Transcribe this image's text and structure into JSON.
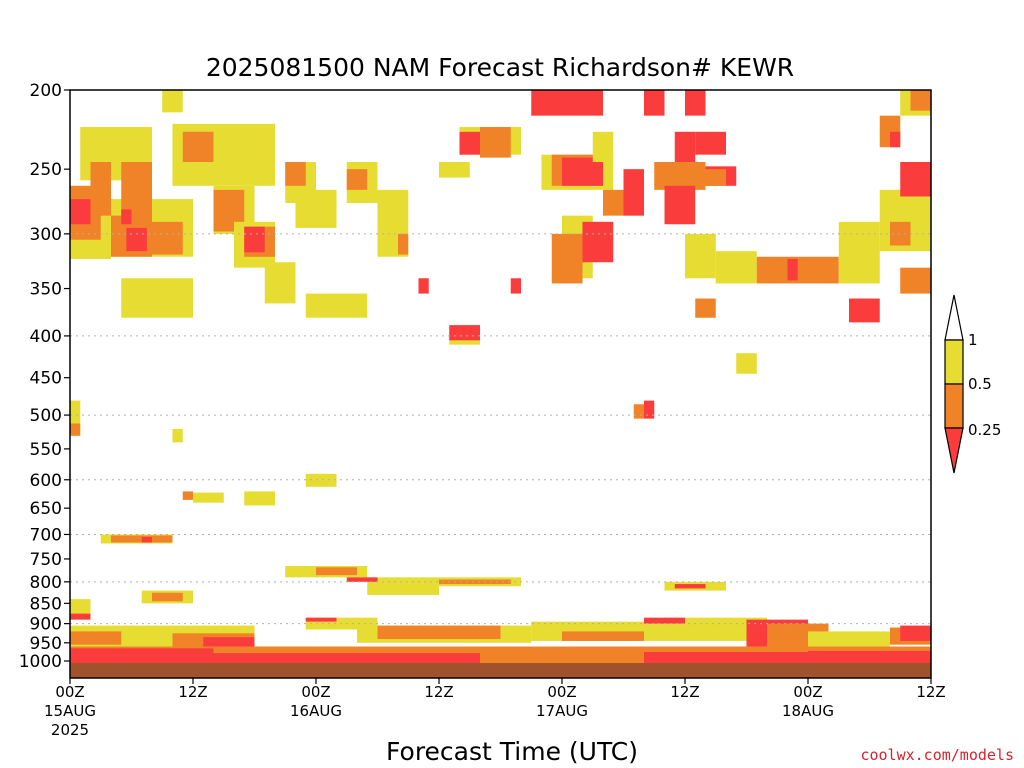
{
  "chart_data": {
    "type": "heatmap",
    "title": "2025081500 NAM Forecast Richardson# KEWR",
    "xlabel": "Forecast Time (UTC)",
    "ylabel": "",
    "credit": "coolwx.com/models",
    "y_axis": {
      "unit": "hPa",
      "range": [
        1025,
        200
      ],
      "ticks": [
        200,
        250,
        300,
        350,
        400,
        450,
        500,
        550,
        600,
        650,
        700,
        750,
        800,
        850,
        900,
        950,
        1000
      ],
      "tick_labels": [
        "200",
        "250",
        "300",
        "350",
        "400",
        "450",
        "500",
        "550",
        "600",
        "650",
        "700",
        "750",
        "800",
        "850",
        "900",
        "950",
        "1000"
      ],
      "dotted_grid_at": [
        300,
        400,
        500,
        600,
        700,
        800,
        900
      ]
    },
    "x_axis": {
      "unit": "forecast hour from 2025-08-15 00Z",
      "range": [
        0,
        84
      ],
      "ticks": [
        {
          "hour": 0,
          "lines": [
            "00Z",
            "15AUG",
            "2025"
          ]
        },
        {
          "hour": 12,
          "lines": [
            "12Z"
          ]
        },
        {
          "hour": 24,
          "lines": [
            "00Z",
            "16AUG"
          ]
        },
        {
          "hour": 36,
          "lines": [
            "12Z"
          ]
        },
        {
          "hour": 48,
          "lines": [
            "00Z",
            "17AUG"
          ]
        },
        {
          "hour": 60,
          "lines": [
            "12Z"
          ]
        },
        {
          "hour": 72,
          "lines": [
            "00Z",
            "18AUG"
          ]
        },
        {
          "hour": 84,
          "lines": [
            "12Z"
          ]
        }
      ]
    },
    "colorbar": {
      "labels": [
        "1",
        "0.5",
        "0.25"
      ],
      "colors": {
        "above_1": "#ffffff",
        "0.5_to_1": "#e6dc32",
        "0.25_to_0.5": "#f08228",
        "below_0.25": "#fa3c3c"
      },
      "placement": "right"
    },
    "ground_color": "#a0522d",
    "regions": [
      {
        "cls": "y",
        "x": [
          0,
          4
        ],
        "p": [
          265,
          322
        ]
      },
      {
        "cls": "o",
        "x": [
          0,
          3
        ],
        "p": [
          262,
          305
        ]
      },
      {
        "cls": "r",
        "x": [
          0,
          2
        ],
        "p": [
          272,
          292
        ]
      },
      {
        "cls": "y",
        "x": [
          1,
          8
        ],
        "p": [
          222,
          258
        ]
      },
      {
        "cls": "o",
        "x": [
          2,
          4
        ],
        "p": [
          245,
          285
        ]
      },
      {
        "cls": "y",
        "x": [
          4,
          12
        ],
        "p": [
          272,
          320
        ]
      },
      {
        "cls": "o",
        "x": [
          4,
          8
        ],
        "p": [
          285,
          320
        ]
      },
      {
        "cls": "o",
        "x": [
          5,
          8
        ],
        "p": [
          245,
          295
        ]
      },
      {
        "cls": "r",
        "x": [
          5,
          6
        ],
        "p": [
          280,
          292
        ]
      },
      {
        "cls": "r",
        "x": [
          5.5,
          7.5
        ],
        "p": [
          295,
          315
        ]
      },
      {
        "cls": "o",
        "x": [
          8,
          11
        ],
        "p": [
          290,
          318
        ]
      },
      {
        "cls": "y",
        "x": [
          5,
          12
        ],
        "p": [
          340,
          380
        ]
      },
      {
        "cls": "y",
        "x": [
          9,
          11
        ],
        "p": [
          200,
          213
        ]
      },
      {
        "cls": "y",
        "x": [
          10,
          20
        ],
        "p": [
          220,
          262
        ]
      },
      {
        "cls": "o",
        "x": [
          11,
          14
        ],
        "p": [
          225,
          245
        ]
      },
      {
        "cls": "y",
        "x": [
          14,
          18
        ],
        "p": [
          262,
          300
        ]
      },
      {
        "cls": "o",
        "x": [
          14,
          17
        ],
        "p": [
          265,
          298
        ]
      },
      {
        "cls": "y",
        "x": [
          16,
          20
        ],
        "p": [
          290,
          330
        ]
      },
      {
        "cls": "o",
        "x": [
          17,
          20
        ],
        "p": [
          294,
          320
        ]
      },
      {
        "cls": "r",
        "x": [
          17,
          19
        ],
        "p": [
          294,
          316
        ]
      },
      {
        "cls": "y",
        "x": [
          19,
          22
        ],
        "p": [
          325,
          365
        ]
      },
      {
        "cls": "y",
        "x": [
          21,
          24
        ],
        "p": [
          245,
          275
        ]
      },
      {
        "cls": "o",
        "x": [
          21,
          23
        ],
        "p": [
          245,
          262
        ]
      },
      {
        "cls": "y",
        "x": [
          22,
          26
        ],
        "p": [
          265,
          295
        ]
      },
      {
        "cls": "y",
        "x": [
          23,
          29
        ],
        "p": [
          355,
          380
        ]
      },
      {
        "cls": "y",
        "x": [
          27,
          30
        ],
        "p": [
          245,
          275
        ]
      },
      {
        "cls": "o",
        "x": [
          27,
          29
        ],
        "p": [
          250,
          265
        ]
      },
      {
        "cls": "y",
        "x": [
          30,
          33
        ],
        "p": [
          265,
          320
        ]
      },
      {
        "cls": "o",
        "x": [
          32,
          33
        ],
        "p": [
          300,
          318
        ]
      },
      {
        "cls": "r",
        "x": [
          34,
          35
        ],
        "p": [
          340,
          355
        ]
      },
      {
        "cls": "y",
        "x": [
          36,
          39
        ],
        "p": [
          245,
          256
        ]
      },
      {
        "cls": "y",
        "x": [
          38,
          44
        ],
        "p": [
          222,
          240
        ]
      },
      {
        "cls": "r",
        "x": [
          38,
          40
        ],
        "p": [
          225,
          240
        ]
      },
      {
        "cls": "o",
        "x": [
          40,
          43
        ],
        "p": [
          222,
          242
        ]
      },
      {
        "cls": "y",
        "x": [
          37,
          40
        ],
        "p": [
          390,
          410
        ]
      },
      {
        "cls": "r",
        "x": [
          37,
          40
        ],
        "p": [
          388,
          405
        ]
      },
      {
        "cls": "r",
        "x": [
          43,
          44
        ],
        "p": [
          340,
          355
        ]
      },
      {
        "cls": "r",
        "x": [
          45,
          52
        ],
        "p": [
          200,
          215
        ]
      },
      {
        "cls": "y",
        "x": [
          46,
          53
        ],
        "p": [
          240,
          265
        ]
      },
      {
        "cls": "o",
        "x": [
          47,
          52
        ],
        "p": [
          240,
          262
        ]
      },
      {
        "cls": "r",
        "x": [
          48,
          52
        ],
        "p": [
          242,
          262
        ]
      },
      {
        "cls": "y",
        "x": [
          48,
          51
        ],
        "p": [
          285,
          340
        ]
      },
      {
        "cls": "o",
        "x": [
          47,
          50
        ],
        "p": [
          300,
          345
        ]
      },
      {
        "cls": "r",
        "x": [
          50,
          53
        ],
        "p": [
          290,
          325
        ]
      },
      {
        "cls": "y",
        "x": [
          51,
          53
        ],
        "p": [
          225,
          245
        ]
      },
      {
        "cls": "o",
        "x": [
          52,
          54
        ],
        "p": [
          265,
          285
        ]
      },
      {
        "cls": "r",
        "x": [
          54,
          56
        ],
        "p": [
          250,
          285
        ]
      },
      {
        "cls": "o",
        "x": [
          57,
          62
        ],
        "p": [
          245,
          265
        ]
      },
      {
        "cls": "r",
        "x": [
          58,
          61
        ],
        "p": [
          262,
          292
        ]
      },
      {
        "cls": "r",
        "x": [
          59,
          61
        ],
        "p": [
          225,
          245
        ]
      },
      {
        "cls": "r",
        "x": [
          61,
          64
        ],
        "p": [
          225,
          240
        ]
      },
      {
        "cls": "r",
        "x": [
          62,
          65
        ],
        "p": [
          248,
          262
        ]
      },
      {
        "cls": "o",
        "x": [
          61,
          64
        ],
        "p": [
          250,
          262
        ]
      },
      {
        "cls": "r",
        "x": [
          56,
          58
        ],
        "p": [
          200,
          215
        ]
      },
      {
        "cls": "r",
        "x": [
          60,
          62
        ],
        "p": [
          200,
          215
        ]
      },
      {
        "cls": "y",
        "x": [
          60,
          63
        ],
        "p": [
          300,
          340
        ]
      },
      {
        "cls": "o",
        "x": [
          61,
          63
        ],
        "p": [
          360,
          380
        ]
      },
      {
        "cls": "y",
        "x": [
          63,
          67
        ],
        "p": [
          315,
          345
        ]
      },
      {
        "cls": "o",
        "x": [
          67,
          72
        ],
        "p": [
          320,
          345
        ]
      },
      {
        "cls": "r",
        "x": [
          70,
          71
        ],
        "p": [
          322,
          342
        ]
      },
      {
        "cls": "o",
        "x": [
          72,
          75
        ],
        "p": [
          320,
          345
        ]
      },
      {
        "cls": "y",
        "x": [
          75,
          79
        ],
        "p": [
          290,
          345
        ]
      },
      {
        "cls": "y",
        "x": [
          79,
          84
        ],
        "p": [
          265,
          315
        ]
      },
      {
        "cls": "o",
        "x": [
          80,
          82
        ],
        "p": [
          290,
          310
        ]
      },
      {
        "cls": "r",
        "x": [
          81,
          84
        ],
        "p": [
          245,
          270
        ]
      },
      {
        "cls": "o",
        "x": [
          79,
          81
        ],
        "p": [
          215,
          235
        ]
      },
      {
        "cls": "r",
        "x": [
          80,
          81
        ],
        "p": [
          225,
          235
        ]
      },
      {
        "cls": "r",
        "x": [
          76,
          79
        ],
        "p": [
          360,
          385
        ]
      },
      {
        "cls": "o",
        "x": [
          81,
          84
        ],
        "p": [
          330,
          355
        ]
      },
      {
        "cls": "y",
        "x": [
          81,
          84
        ],
        "p": [
          200,
          215
        ]
      },
      {
        "cls": "o",
        "x": [
          82,
          84
        ],
        "p": [
          200,
          212
        ]
      },
      {
        "cls": "y",
        "x": [
          65,
          67
        ],
        "p": [
          420,
          445
        ]
      },
      {
        "cls": "o",
        "x": [
          55,
          56
        ],
        "p": [
          485,
          505
        ]
      },
      {
        "cls": "r",
        "x": [
          56,
          57
        ],
        "p": [
          480,
          505
        ]
      },
      {
        "cls": "y",
        "x": [
          0,
          1
        ],
        "p": [
          480,
          530
        ]
      },
      {
        "cls": "o",
        "x": [
          0,
          1
        ],
        "p": [
          512,
          530
        ]
      },
      {
        "cls": "y",
        "x": [
          10,
          11
        ],
        "p": [
          520,
          540
        ]
      },
      {
        "cls": "y",
        "x": [
          23,
          26
        ],
        "p": [
          590,
          612
        ]
      },
      {
        "cls": "y",
        "x": [
          17,
          20
        ],
        "p": [
          620,
          645
        ]
      },
      {
        "cls": "o",
        "x": [
          11,
          12
        ],
        "p": [
          620,
          635
        ]
      },
      {
        "cls": "y",
        "x": [
          12,
          15
        ],
        "p": [
          622,
          640
        ]
      },
      {
        "cls": "y",
        "x": [
          3,
          10
        ],
        "p": [
          700,
          718
        ]
      },
      {
        "cls": "o",
        "x": [
          4,
          10
        ],
        "p": [
          702,
          716
        ]
      },
      {
        "cls": "r",
        "x": [
          7,
          8
        ],
        "p": [
          705,
          716
        ]
      },
      {
        "cls": "y",
        "x": [
          21,
          29
        ],
        "p": [
          765,
          790
        ]
      },
      {
        "cls": "o",
        "x": [
          24,
          28
        ],
        "p": [
          768,
          785
        ]
      },
      {
        "cls": "y",
        "x": [
          29,
          36
        ],
        "p": [
          790,
          830
        ]
      },
      {
        "cls": "r",
        "x": [
          27,
          30
        ],
        "p": [
          790,
          800
        ]
      },
      {
        "cls": "y",
        "x": [
          36,
          44
        ],
        "p": [
          790,
          810
        ]
      },
      {
        "cls": "o",
        "x": [
          36,
          43
        ],
        "p": [
          795,
          805
        ]
      },
      {
        "cls": "y",
        "x": [
          58,
          64
        ],
        "p": [
          800,
          820
        ]
      },
      {
        "cls": "r",
        "x": [
          59,
          62
        ],
        "p": [
          805,
          815
        ]
      },
      {
        "cls": "y",
        "x": [
          7,
          12
        ],
        "p": [
          820,
          850
        ]
      },
      {
        "cls": "o",
        "x": [
          8,
          11
        ],
        "p": [
          825,
          845
        ]
      },
      {
        "cls": "y",
        "x": [
          0,
          2
        ],
        "p": [
          840,
          880
        ]
      },
      {
        "cls": "r",
        "x": [
          0,
          2
        ],
        "p": [
          875,
          890
        ]
      },
      {
        "cls": "y",
        "x": [
          0,
          8
        ],
        "p": [
          905,
          960
        ]
      },
      {
        "cls": "o",
        "x": [
          0,
          5
        ],
        "p": [
          920,
          955
        ]
      },
      {
        "cls": "y",
        "x": [
          8,
          18
        ],
        "p": [
          905,
          960
        ]
      },
      {
        "cls": "o",
        "x": [
          10,
          18
        ],
        "p": [
          925,
          960
        ]
      },
      {
        "cls": "r",
        "x": [
          13,
          18
        ],
        "p": [
          935,
          960
        ]
      },
      {
        "cls": "y",
        "x": [
          23,
          30
        ],
        "p": [
          885,
          915
        ]
      },
      {
        "cls": "r",
        "x": [
          23,
          26
        ],
        "p": [
          885,
          895
        ]
      },
      {
        "cls": "y",
        "x": [
          28,
          45
        ],
        "p": [
          905,
          950
        ]
      },
      {
        "cls": "o",
        "x": [
          30,
          42
        ],
        "p": [
          905,
          940
        ]
      },
      {
        "cls": "y",
        "x": [
          45,
          58
        ],
        "p": [
          895,
          945
        ]
      },
      {
        "cls": "o",
        "x": [
          48,
          56
        ],
        "p": [
          920,
          945
        ]
      },
      {
        "cls": "y",
        "x": [
          58,
          68
        ],
        "p": [
          885,
          945
        ]
      },
      {
        "cls": "r",
        "x": [
          56,
          60
        ],
        "p": [
          885,
          900
        ]
      },
      {
        "cls": "r",
        "x": [
          66,
          72
        ],
        "p": [
          890,
          960
        ]
      },
      {
        "cls": "o",
        "x": [
          68,
          74
        ],
        "p": [
          900,
          960
        ]
      },
      {
        "cls": "y",
        "x": [
          72,
          80
        ],
        "p": [
          920,
          960
        ]
      },
      {
        "cls": "o",
        "x": [
          80,
          84
        ],
        "p": [
          910,
          955
        ]
      },
      {
        "cls": "r",
        "x": [
          81,
          84
        ],
        "p": [
          905,
          945
        ]
      },
      {
        "cls": "o",
        "x": [
          0,
          84
        ],
        "p": [
          960,
          1002
        ]
      },
      {
        "cls": "r",
        "x": [
          0,
          14
        ],
        "p": [
          965,
          1008
        ]
      },
      {
        "cls": "r",
        "x": [
          14,
          40
        ],
        "p": [
          978,
          1008
        ]
      },
      {
        "cls": "o",
        "x": [
          40,
          56
        ],
        "p": [
          988,
          1008
        ]
      },
      {
        "cls": "r",
        "x": [
          56,
          72
        ],
        "p": [
          975,
          1008
        ]
      },
      {
        "cls": "r",
        "x": [
          72,
          84
        ],
        "p": [
          972,
          1006
        ]
      }
    ]
  }
}
